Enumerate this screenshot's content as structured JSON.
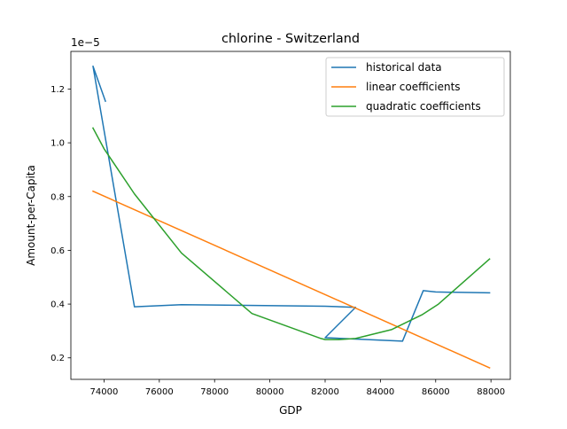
{
  "chart_data": {
    "type": "line",
    "title": "chlorine - Switzerland",
    "xlabel": "GDP",
    "ylabel": "Amount-per-Capita",
    "y_multiplier_label": "1e−5",
    "xlim": [
      72800,
      88700
    ],
    "ylim": [
      0.12,
      1.34
    ],
    "x_ticks": [
      74000,
      76000,
      78000,
      80000,
      82000,
      84000,
      86000,
      88000
    ],
    "x_tick_labels": [
      "74000",
      "76000",
      "78000",
      "80000",
      "82000",
      "84000",
      "86000",
      "88000"
    ],
    "y_ticks": [
      0.2,
      0.4,
      0.6,
      0.8,
      1.0,
      1.2
    ],
    "y_tick_labels": [
      "0.2",
      "0.4",
      "0.6",
      "0.8",
      "1.0",
      "1.2"
    ],
    "grid": false,
    "legend_position": "top-right",
    "series": [
      {
        "name": "historical data",
        "color": "#1f77b4",
        "x": [
          74050,
          73600,
          75100,
          76800,
          82000,
          83100,
          82000,
          84800,
          85550,
          86000,
          87950
        ],
        "y": [
          1.155,
          1.285,
          0.39,
          0.398,
          0.392,
          0.388,
          0.275,
          0.262,
          0.45,
          0.445,
          0.442
        ]
      },
      {
        "name": "linear coefficients",
        "color": "#ff7f0e",
        "x": [
          73600,
          87950
        ],
        "y": [
          0.82,
          0.163
        ]
      },
      {
        "name": "quadratic coefficients",
        "color": "#2ca02c",
        "x": [
          73600,
          74000,
          75100,
          76800,
          79350,
          81850,
          82000,
          82500,
          83100,
          84400,
          84800,
          85500,
          86100,
          87950
        ],
        "y": [
          1.055,
          0.978,
          0.81,
          0.59,
          0.365,
          0.272,
          0.268,
          0.268,
          0.272,
          0.305,
          0.325,
          0.36,
          0.4,
          0.568
        ]
      }
    ]
  }
}
